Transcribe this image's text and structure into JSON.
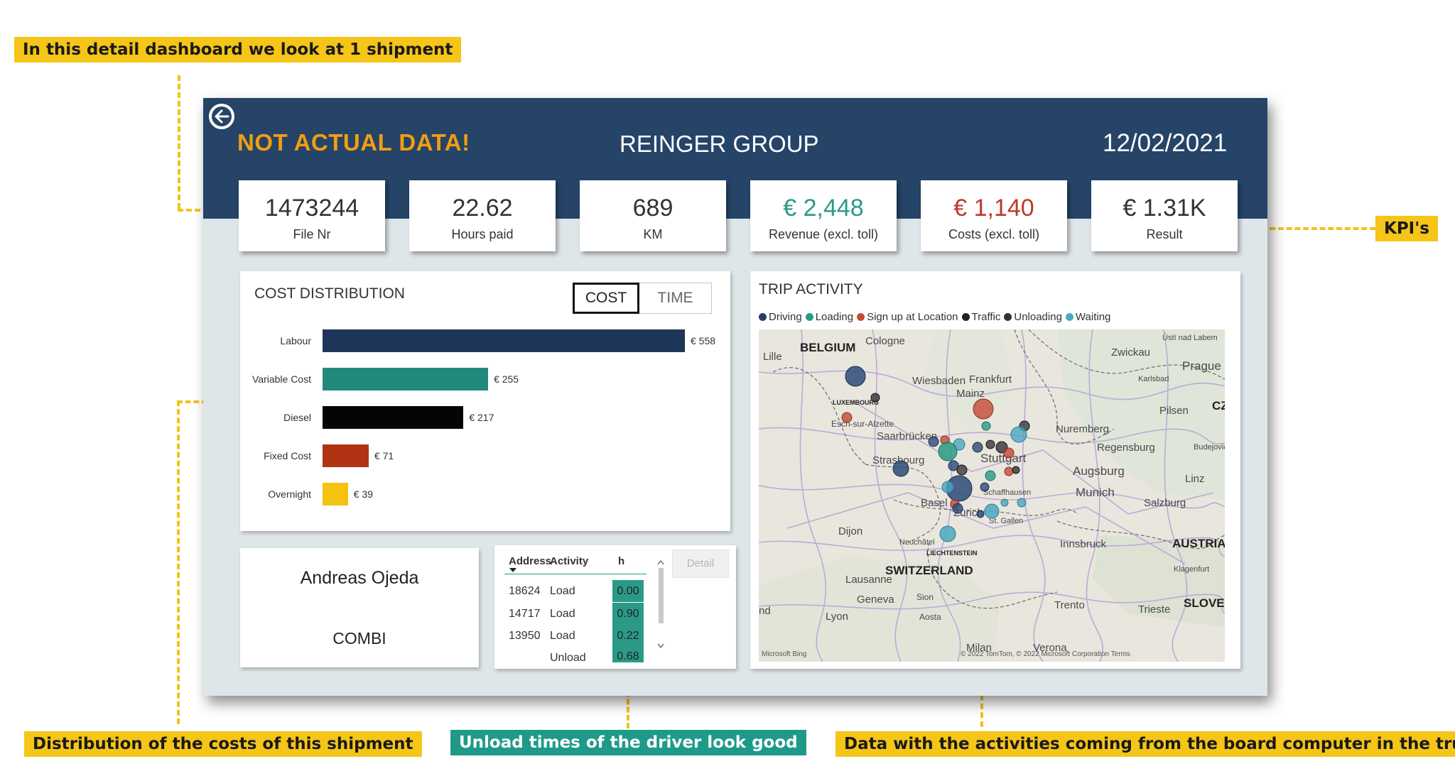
{
  "callouts": {
    "top": "In this detail dashboard we look at 1 shipment",
    "kpis": "KPI's",
    "costs": "Distribution of the costs of this shipment",
    "unload": "Unload times of the driver look good",
    "board": "Data with the activities coming from the board computer in the truck"
  },
  "header": {
    "warning": "NOT ACTUAL DATA!",
    "company": "REINGER GROUP",
    "date": "12/02/2021",
    "back_icon": "back-arrow-icon"
  },
  "kpis": [
    {
      "value": "1473244",
      "label": "File Nr"
    },
    {
      "value": "22.62",
      "label": "Hours paid"
    },
    {
      "value": "689",
      "label": "KM"
    },
    {
      "value": "€ 2,448",
      "label": "Revenue (excl. toll)"
    },
    {
      "value": "€ 1,140",
      "label": "Costs (excl. toll)"
    },
    {
      "value": "€ 1.31K",
      "label": "Result"
    }
  ],
  "colors": {
    "banner": "#254468",
    "warning": "#f29d12",
    "revenue": "#2a9a86",
    "costs": "#c0392b",
    "callout_yellow": "#f5c518",
    "callout_teal": "#1f9a8a"
  },
  "cost_distribution": {
    "title": "COST DISTRIBUTION",
    "toggle": {
      "cost": "COST",
      "time": "TIME",
      "selected": "COST"
    }
  },
  "chart_data": {
    "type": "bar",
    "orientation": "horizontal",
    "categories": [
      "Labour",
      "Variable Cost",
      "Diesel",
      "Fixed Cost",
      "Overnight"
    ],
    "values": [
      558,
      255,
      217,
      71,
      39
    ],
    "value_labels": [
      "€ 558",
      "€ 255",
      "€ 217",
      "€ 71",
      "€ 39"
    ],
    "colors": [
      "#1d3558",
      "#218a7c",
      "#050505",
      "#b23214",
      "#f5c20f"
    ],
    "xlim": [
      0,
      558
    ]
  },
  "driver": {
    "name": "Andreas Ojeda",
    "type": "COMBI"
  },
  "activities_table": {
    "columns": [
      "Address",
      "Activity",
      "h"
    ],
    "rows": [
      {
        "address": "18624",
        "activity": "Load",
        "h": "0.00"
      },
      {
        "address": "14717",
        "activity": "Load",
        "h": "0.90"
      },
      {
        "address": "13950",
        "activity": "Load",
        "h": "0.22"
      },
      {
        "address": "",
        "activity": "Unload",
        "h": "0.68"
      }
    ],
    "detail_label": "Detail"
  },
  "trip_activity": {
    "title": "TRIP ACTIVITY",
    "legend": [
      {
        "name": "Driving",
        "color": "#223e68"
      },
      {
        "name": "Loading",
        "color": "#2a9a86"
      },
      {
        "name": "Sign up at Location",
        "color": "#c34a33"
      },
      {
        "name": "Traffic",
        "color": "#222222"
      },
      {
        "name": "Unloading",
        "color": "#333333"
      },
      {
        "name": "Waiting",
        "color": "#4aa8c2"
      }
    ],
    "map_labels": {
      "countries": [
        "BELGIUM",
        "LUXEMBOURG",
        "SWITZERLAND",
        "LIECHTENSTEIN",
        "AUSTRIA",
        "SLOVEN",
        "CZ"
      ],
      "cities": [
        "Lille",
        "Cologne",
        "Zwickau",
        "Ústí nad Labem",
        "Prague",
        "Wiesbaden",
        "Frankfurt",
        "Mainz",
        "Karlsbad",
        "Pilsen",
        "Esch-sur-Alzette",
        "Saarbrücken",
        "Nuremberg",
        "Regensburg",
        "Budejovice",
        "Strasbourg",
        "Stuttgart",
        "Augsburg",
        "Linz",
        "Munich",
        "Schaffhausen",
        "Basel",
        "Zurich",
        "Salzburg",
        "Dijon",
        "Neuchâtel",
        "St. Gallen",
        "Innsbruck",
        "Klagenfurt",
        "Lausanne",
        "Geneva",
        "Sion",
        "Aosta",
        "Lyon",
        "Trento",
        "Trieste",
        "Milan",
        "Verona",
        "nd"
      ],
      "attribution_left": "Microsoft Bing",
      "attribution_right": "© 2022 TomTom, © 2022 Microsoft Corporation  Terms"
    }
  }
}
